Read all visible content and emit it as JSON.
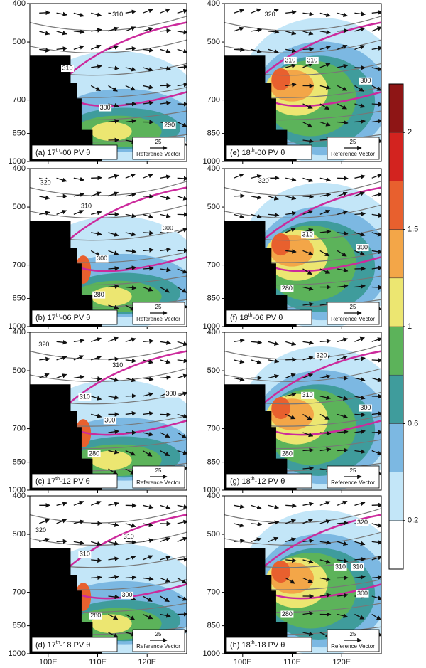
{
  "panels": [
    {
      "label": "(a) 17",
      "label_sup": "th",
      "label_end": "-00 PV θ",
      "contours": [
        310,
        310,
        300,
        290
      ]
    },
    {
      "label": "(b) 17",
      "label_sup": "th",
      "label_end": "-06 PV θ",
      "contours": [
        320,
        310,
        300,
        300,
        280
      ]
    },
    {
      "label": "(c) 17",
      "label_sup": "th",
      "label_end": "-12 PV θ",
      "contours": [
        320,
        310,
        310,
        300,
        300,
        280
      ]
    },
    {
      "label": "(d) 17",
      "label_sup": "th",
      "label_end": "-18 PV θ",
      "contours": [
        320,
        310,
        310,
        300,
        280
      ]
    },
    {
      "label": "(e) 18",
      "label_sup": "th",
      "label_end": "-00 PV θ",
      "contours": [
        320,
        310,
        310,
        300
      ]
    },
    {
      "label": "(f) 18",
      "label_sup": "th",
      "label_end": "-06 PV θ",
      "contours": [
        320,
        310,
        300,
        280
      ]
    },
    {
      "label": "(g) 18",
      "label_sup": "th",
      "label_end": "-12 PV θ",
      "contours": [
        320,
        310,
        300,
        280
      ]
    },
    {
      "label": "(h) 18",
      "label_sup": "th",
      "label_end": "-18 PV θ",
      "contours": [
        320,
        310,
        310,
        300,
        280
      ]
    }
  ],
  "reference_vector": {
    "value": 25,
    "label": "Reference Vector"
  },
  "y_axis": {
    "ylim": [
      1000,
      400
    ],
    "log": true,
    "yticks": [
      400,
      500,
      700,
      850,
      1000
    ]
  },
  "x_axis": {
    "xlim": [
      96.3,
      128
    ],
    "xticks": [
      {
        "value": 100,
        "label": "100E"
      },
      {
        "value": 110,
        "label": "110E"
      },
      {
        "value": 120,
        "label": "120E"
      }
    ]
  },
  "colorbar": {
    "colors": [
      "#ffffff",
      "#c3e6f8",
      "#7cb8e2",
      "#3f9c9c",
      "#5cb35a",
      "#ece671",
      "#f3a648",
      "#e8602e",
      "#d3231f",
      "#8e1515"
    ],
    "ticks": [
      0.2,
      0.6,
      1,
      1.5,
      2
    ]
  }
}
